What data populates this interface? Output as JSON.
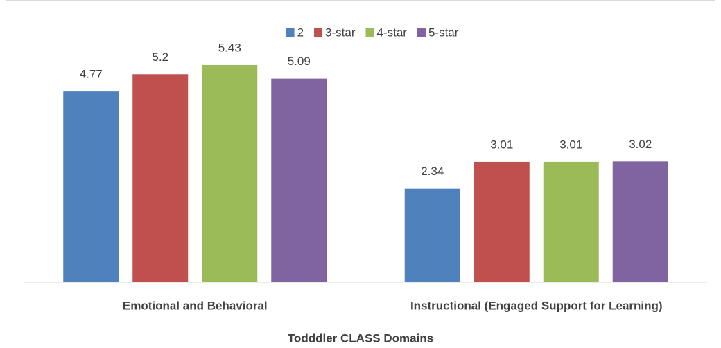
{
  "chart_data": {
    "type": "bar",
    "x_label": "Todddler CLASS Domains",
    "categories": [
      "Emotional and Behavioral",
      "Instructional (Engaged Support for Learning)"
    ],
    "series": [
      {
        "name": "2",
        "color": "#4f81bd",
        "values": [
          4.77,
          2.34
        ]
      },
      {
        "name": "3-star",
        "color": "#c0504d",
        "values": [
          5.2,
          3.01
        ]
      },
      {
        "name": "4-star",
        "color": "#9bbb59",
        "values": [
          5.43,
          3.01
        ]
      },
      {
        "name": "5-star",
        "color": "#8064a2",
        "values": [
          5.09,
          3.02
        ]
      }
    ],
    "ylim": [
      0,
      6
    ],
    "legend": "top"
  }
}
